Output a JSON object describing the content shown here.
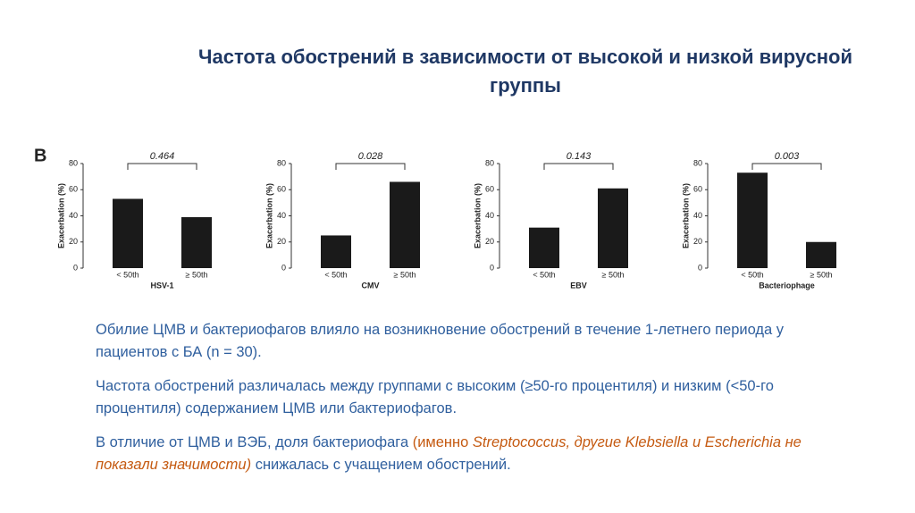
{
  "title": "Частота обострений в зависимости от высокой и низкой вирусной группы",
  "panel_label": "B",
  "chart_data": [
    {
      "type": "bar",
      "x_label": "HSV-1",
      "y_label": "Exacerbation (%)",
      "annotation": "0.464",
      "categories": [
        "< 50th",
        "≥ 50th"
      ],
      "values": [
        53,
        39
      ],
      "color": "#1a1a1a",
      "ylim": [
        0,
        80
      ],
      "yticks": [
        0,
        20,
        40,
        60,
        80
      ]
    },
    {
      "type": "bar",
      "x_label": "CMV",
      "y_label": "Exacerbation (%)",
      "annotation": "0.028",
      "categories": [
        "< 50th",
        "≥ 50th"
      ],
      "values": [
        25,
        66
      ],
      "color": "#1a1a1a",
      "ylim": [
        0,
        80
      ],
      "yticks": [
        0,
        20,
        40,
        60,
        80
      ]
    },
    {
      "type": "bar",
      "x_label": "EBV",
      "y_label": "Exacerbation (%)",
      "annotation": "0.143",
      "categories": [
        "< 50th",
        "≥ 50th"
      ],
      "values": [
        31,
        61
      ],
      "color": "#1a1a1a",
      "ylim": [
        0,
        80
      ],
      "yticks": [
        0,
        20,
        40,
        60,
        80
      ]
    },
    {
      "type": "bar",
      "x_label": "Bacteriophage",
      "y_label": "Exacerbation (%)",
      "annotation": "0.003",
      "categories": [
        "< 50th",
        "≥ 50th"
      ],
      "values": [
        73,
        20
      ],
      "color": "#1a1a1a",
      "ylim": [
        0,
        80
      ],
      "yticks": [
        0,
        20,
        40,
        60,
        80
      ]
    }
  ],
  "paragraphs": [
    "Обилие ЦМВ и бактериофагов влияло на возникновение обострений в течение 1-летнего периода у пациентов с БА (n = 30).",
    "Частота обострений различалась между группами с высоким (≥50-го процентиля) и низким (<50-го процентиля) содержанием ЦМВ или бактериофагов.",
    [
      "В отличие от ЦМВ и ВЭБ, доля бактериофага ",
      "(именно ",
      "Streptococcus",
      ", другие ",
      "Klebsiella",
      " и ",
      "Escherichia",
      " не показали значимости)",
      " снижалась с учащением обострений."
    ]
  ]
}
